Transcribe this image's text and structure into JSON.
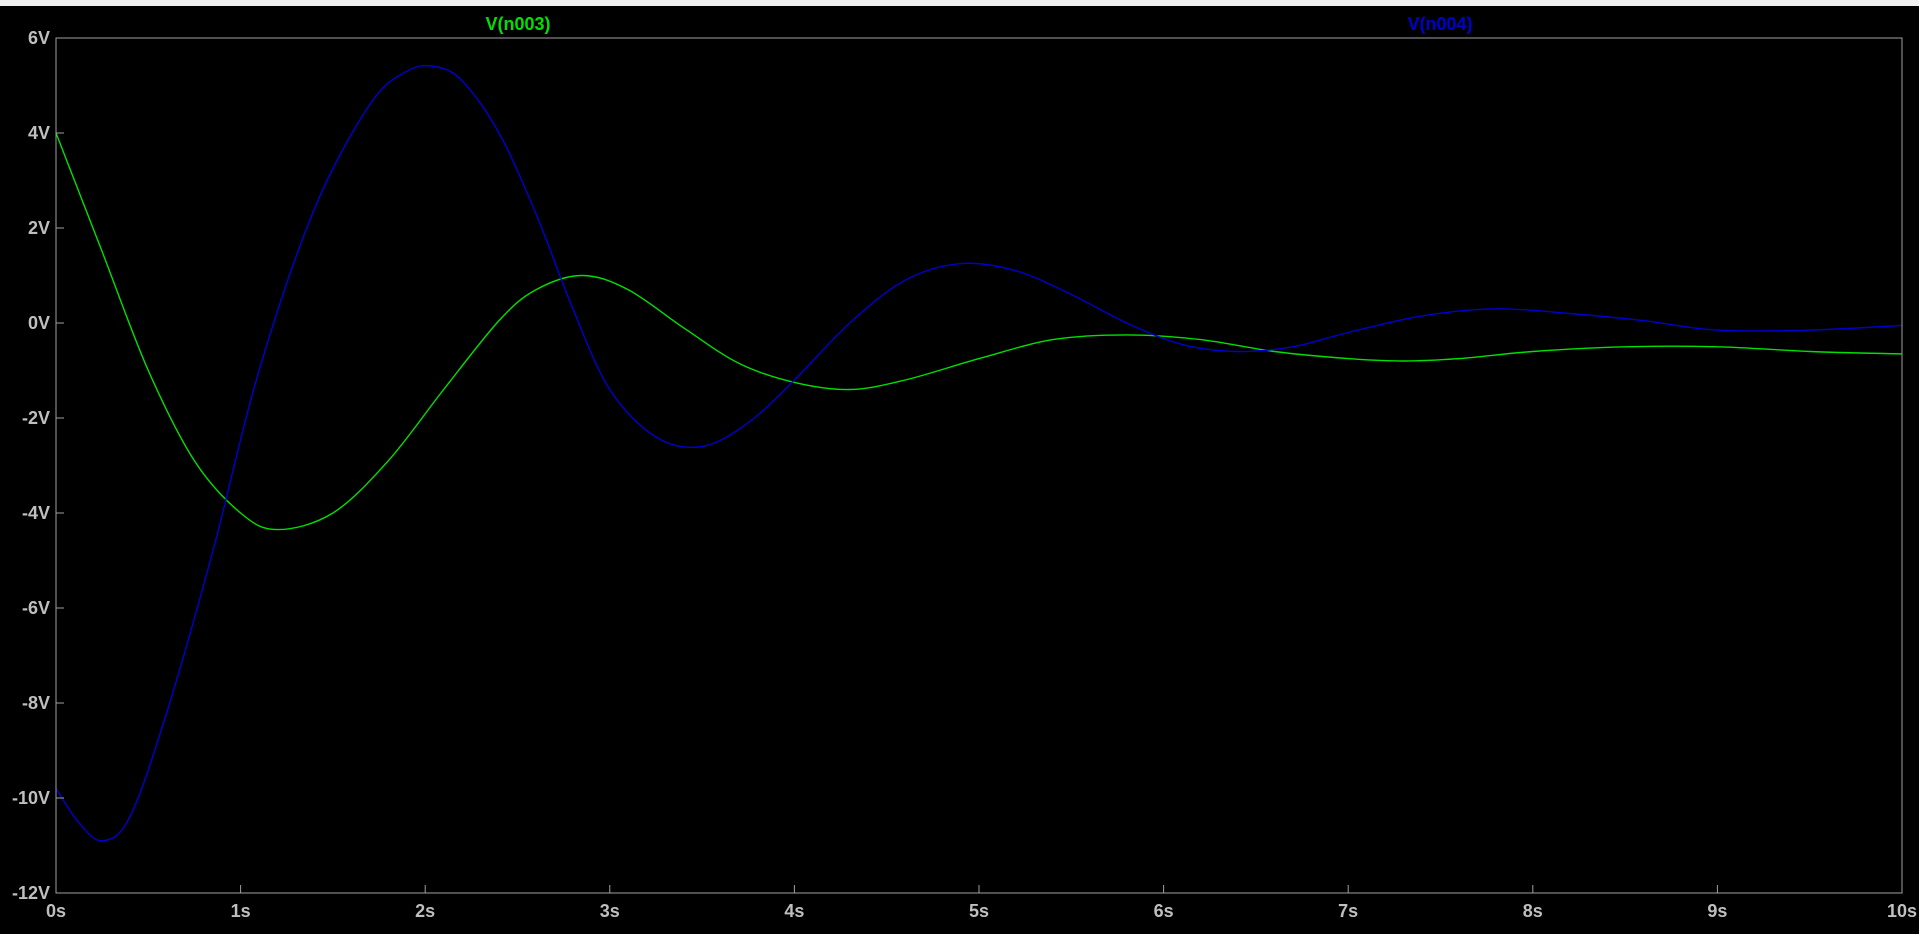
{
  "window": {
    "background": "#000000",
    "frame_color": "#f0f0f0",
    "axis_color": "#a0a0a0",
    "label_color": "#bfbfbf"
  },
  "chart_data": {
    "type": "line",
    "title": "",
    "xlabel": "",
    "ylabel": "",
    "xlim": [
      0,
      10
    ],
    "ylim": [
      -12,
      6
    ],
    "grid": false,
    "x_unit": "s",
    "y_unit": "V",
    "x_ticks": [
      "0s",
      "1s",
      "2s",
      "3s",
      "4s",
      "5s",
      "6s",
      "7s",
      "8s",
      "9s",
      "10s"
    ],
    "y_ticks": [
      "6V",
      "4V",
      "2V",
      "0V",
      "-2V",
      "-4V",
      "-6V",
      "-8V",
      "-10V",
      "-12V"
    ],
    "legend": [
      "V(n003)",
      "V(n004)"
    ],
    "series": [
      {
        "name": "V(n003)",
        "color": "#00e000",
        "x": [
          0,
          0.25,
          0.5,
          0.75,
          1.0,
          1.2,
          1.5,
          1.8,
          2.1,
          2.4,
          2.6,
          2.85,
          3.1,
          3.4,
          3.7,
          4.0,
          4.3,
          4.6,
          5.0,
          5.4,
          5.8,
          6.2,
          6.6,
          7.0,
          7.3,
          7.6,
          8.0,
          8.5,
          9.0,
          9.5,
          10.0
        ],
        "y": [
          4.0,
          1.5,
          -1.0,
          -2.9,
          -4.0,
          -4.35,
          -4.0,
          -2.9,
          -1.4,
          0.05,
          0.7,
          1.0,
          0.7,
          -0.1,
          -0.85,
          -1.25,
          -1.4,
          -1.2,
          -0.75,
          -0.35,
          -0.25,
          -0.35,
          -0.6,
          -0.75,
          -0.8,
          -0.75,
          -0.6,
          -0.5,
          -0.5,
          -0.6,
          -0.65
        ]
      },
      {
        "name": "V(n004)",
        "color": "#0000d0",
        "x": [
          0,
          0.12,
          0.25,
          0.4,
          0.6,
          0.85,
          1.1,
          1.4,
          1.7,
          1.9,
          2.05,
          2.2,
          2.4,
          2.6,
          2.8,
          3.0,
          3.25,
          3.5,
          3.75,
          4.0,
          4.3,
          4.6,
          4.9,
          5.2,
          5.5,
          5.8,
          6.1,
          6.4,
          6.7,
          7.0,
          7.4,
          7.8,
          8.2,
          8.6,
          9.0,
          9.5,
          10.0
        ],
        "y": [
          -9.8,
          -10.5,
          -10.9,
          -10.4,
          -8.2,
          -4.8,
          -1.0,
          2.4,
          4.6,
          5.3,
          5.4,
          5.1,
          4.0,
          2.3,
          0.3,
          -1.4,
          -2.4,
          -2.6,
          -2.1,
          -1.2,
          0.0,
          0.9,
          1.25,
          1.1,
          0.6,
          0.0,
          -0.45,
          -0.6,
          -0.5,
          -0.2,
          0.15,
          0.3,
          0.2,
          0.05,
          -0.15,
          -0.15,
          -0.05
        ]
      }
    ]
  }
}
